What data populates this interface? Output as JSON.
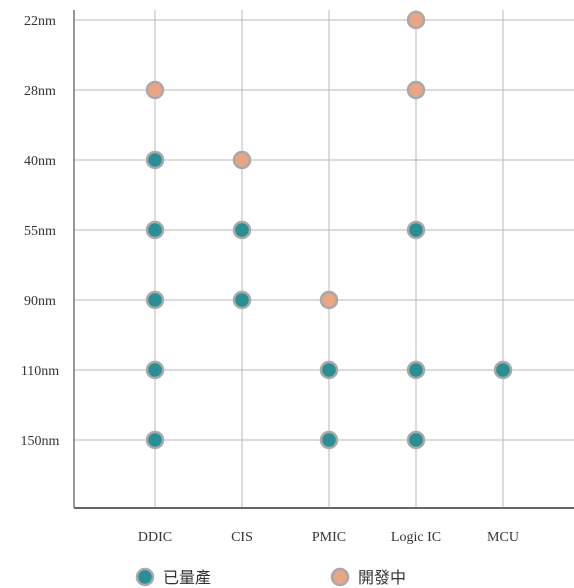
{
  "chart_data": {
    "type": "scatter",
    "title": "",
    "xlabel": "",
    "ylabel": "",
    "categories": [
      "DDIC",
      "CIS",
      "PMIC",
      "Logic IC",
      "MCU"
    ],
    "y_categories": [
      "22nm",
      "28nm",
      "40nm",
      "55nm",
      "90nm",
      "110nm",
      "150nm"
    ],
    "grid": true,
    "legend_position": "bottom",
    "series": [
      {
        "name": "已量產",
        "color": "#2a8f94",
        "points": [
          {
            "x": "DDIC",
            "y": "40nm"
          },
          {
            "x": "DDIC",
            "y": "55nm"
          },
          {
            "x": "DDIC",
            "y": "90nm"
          },
          {
            "x": "DDIC",
            "y": "110nm"
          },
          {
            "x": "DDIC",
            "y": "150nm"
          },
          {
            "x": "CIS",
            "y": "55nm"
          },
          {
            "x": "CIS",
            "y": "90nm"
          },
          {
            "x": "PMIC",
            "y": "110nm"
          },
          {
            "x": "PMIC",
            "y": "150nm"
          },
          {
            "x": "Logic IC",
            "y": "55nm"
          },
          {
            "x": "Logic IC",
            "y": "110nm"
          },
          {
            "x": "Logic IC",
            "y": "150nm"
          },
          {
            "x": "MCU",
            "y": "110nm"
          }
        ]
      },
      {
        "name": "開發中",
        "color": "#e9a584",
        "points": [
          {
            "x": "DDIC",
            "y": "28nm"
          },
          {
            "x": "CIS",
            "y": "40nm"
          },
          {
            "x": "PMIC",
            "y": "90nm"
          },
          {
            "x": "Logic IC",
            "y": "22nm"
          },
          {
            "x": "Logic IC",
            "y": "28nm"
          }
        ]
      }
    ]
  }
}
